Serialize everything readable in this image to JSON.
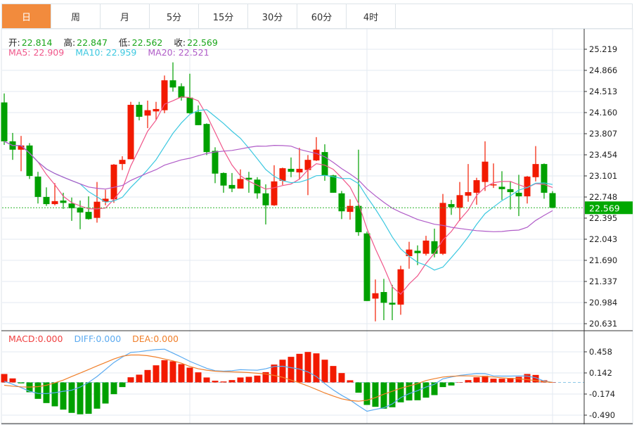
{
  "tabs": [
    {
      "label": "日",
      "active": true
    },
    {
      "label": "周",
      "active": false
    },
    {
      "label": "月",
      "active": false
    },
    {
      "label": "5分",
      "active": false
    },
    {
      "label": "15分",
      "active": false
    },
    {
      "label": "30分",
      "active": false
    },
    {
      "label": "60分",
      "active": false
    },
    {
      "label": "4时",
      "active": false
    }
  ],
  "ohlc_info": {
    "open_label": "开:",
    "open": "22.814",
    "high_label": "高:",
    "high": "22.847",
    "low_label": "低:",
    "low": "22.562",
    "close_label": "收:",
    "close": "22.569"
  },
  "ma_info": {
    "ma5": "MA5: 22.909",
    "ma10": "MA10: 22.959",
    "ma20": "MA20: 22.521"
  },
  "macd_info": {
    "macd": "MACD:0.000",
    "diff": "DIFF:0.000",
    "dea": "DEA:0.000"
  },
  "colors": {
    "up": "#f21a00",
    "down": "#00a000",
    "ma5": "#f0568a",
    "ma10": "#3cc8e0",
    "ma20": "#b05cc8",
    "diff": "#5aaaf0",
    "dea": "#f07f2a",
    "active_tab": "#f28b3d",
    "price_tag": "#00a800"
  },
  "chart_data": [
    {
      "type": "candlestick",
      "current_price": 22.569,
      "current_price_label": "22.569",
      "ylim": [
        20.631,
        25.219
      ],
      "yticks": [
        "25.219",
        "24.866",
        "24.513",
        "24.160",
        "23.807",
        "23.454",
        "23.101",
        "22.748",
        "22.395",
        "22.043",
        "21.690",
        "21.337",
        "20.984",
        "20.631"
      ],
      "ma_periods": [
        5,
        10,
        20
      ],
      "ohlc": [
        [
          24.33,
          24.48,
          23.62,
          23.68
        ],
        [
          23.68,
          23.82,
          23.37,
          23.54
        ],
        [
          23.54,
          23.77,
          23.18,
          23.61
        ],
        [
          23.61,
          23.65,
          23.05,
          23.1
        ],
        [
          23.09,
          23.17,
          22.64,
          22.75
        ],
        [
          22.75,
          22.91,
          22.6,
          22.63
        ],
        [
          22.63,
          22.98,
          22.61,
          22.68
        ],
        [
          22.69,
          22.82,
          22.55,
          22.65
        ],
        [
          22.64,
          22.74,
          22.35,
          22.56
        ],
        [
          22.57,
          22.69,
          22.21,
          22.49
        ],
        [
          22.5,
          22.76,
          22.37,
          22.38
        ],
        [
          22.4,
          23.0,
          22.32,
          22.67
        ],
        [
          22.67,
          22.87,
          22.61,
          22.72
        ],
        [
          22.71,
          23.3,
          22.65,
          23.29
        ],
        [
          23.3,
          23.43,
          23.2,
          23.37
        ],
        [
          23.38,
          24.34,
          23.38,
          24.29
        ],
        [
          24.29,
          24.34,
          24.03,
          24.09
        ],
        [
          24.11,
          24.36,
          23.9,
          24.2
        ],
        [
          24.18,
          24.34,
          24.04,
          24.22
        ],
        [
          24.2,
          24.78,
          24.15,
          24.7
        ],
        [
          24.7,
          25.0,
          24.51,
          24.58
        ],
        [
          24.6,
          24.65,
          24.36,
          24.41
        ],
        [
          24.41,
          24.81,
          24.14,
          24.15
        ],
        [
          24.17,
          24.28,
          23.95,
          23.95
        ],
        [
          23.97,
          23.98,
          23.45,
          23.5
        ],
        [
          23.52,
          23.58,
          22.98,
          23.14
        ],
        [
          23.15,
          23.16,
          22.82,
          22.94
        ],
        [
          22.95,
          23.15,
          22.83,
          22.89
        ],
        [
          22.89,
          23.21,
          22.89,
          23.05
        ],
        [
          23.07,
          23.17,
          22.82,
          23.04
        ],
        [
          23.04,
          23.08,
          22.72,
          22.81
        ],
        [
          22.81,
          22.96,
          22.29,
          22.61
        ],
        [
          22.61,
          23.28,
          22.6,
          23.01
        ],
        [
          23.02,
          23.24,
          22.95,
          23.23
        ],
        [
          23.22,
          23.41,
          23.08,
          23.17
        ],
        [
          23.16,
          23.57,
          23.04,
          23.22
        ],
        [
          23.2,
          23.45,
          22.78,
          23.37
        ],
        [
          23.36,
          23.75,
          23.35,
          23.54
        ],
        [
          23.5,
          23.63,
          23.02,
          23.11
        ],
        [
          23.11,
          23.12,
          22.82,
          22.82
        ],
        [
          22.81,
          22.85,
          22.38,
          22.51
        ],
        [
          22.5,
          22.71,
          22.37,
          22.6
        ],
        [
          22.6,
          23.54,
          22.1,
          22.16
        ],
        [
          22.14,
          22.17,
          21.01,
          21.01
        ],
        [
          21.05,
          21.37,
          20.67,
          21.14
        ],
        [
          21.16,
          21.38,
          20.69,
          20.98
        ],
        [
          20.98,
          21.28,
          20.69,
          20.95
        ],
        [
          20.95,
          21.6,
          20.78,
          21.54
        ],
        [
          21.76,
          22.0,
          21.55,
          21.87
        ],
        [
          21.85,
          21.94,
          21.61,
          21.81
        ],
        [
          21.8,
          22.1,
          21.77,
          22.02
        ],
        [
          22.01,
          22.22,
          21.74,
          21.8
        ],
        [
          21.8,
          22.8,
          21.78,
          22.65
        ],
        [
          22.63,
          22.7,
          22.45,
          22.58
        ],
        [
          22.57,
          23.0,
          22.35,
          22.78
        ],
        [
          22.77,
          23.3,
          22.67,
          22.83
        ],
        [
          22.82,
          23.07,
          22.62,
          23.03
        ],
        [
          23.0,
          23.68,
          22.85,
          23.34
        ],
        [
          22.95,
          23.31,
          22.9,
          22.96
        ],
        [
          22.92,
          23.18,
          22.7,
          22.88
        ],
        [
          22.88,
          23.01,
          22.54,
          22.83
        ],
        [
          22.82,
          23.12,
          22.43,
          22.76
        ],
        [
          22.76,
          23.1,
          22.64,
          23.09
        ],
        [
          23.08,
          23.6,
          23.01,
          23.3
        ],
        [
          23.3,
          23.31,
          22.72,
          22.82
        ],
        [
          22.814,
          22.847,
          22.562,
          22.569
        ]
      ]
    },
    {
      "type": "bar+line",
      "ylim": [
        -0.49,
        0.458
      ],
      "yticks": [
        "0.458",
        "0.142",
        "-0.174",
        "-0.490"
      ],
      "macd": [
        0.126,
        0.06,
        -0.014,
        -0.147,
        -0.246,
        -0.309,
        -0.358,
        -0.407,
        -0.456,
        -0.477,
        -0.47,
        -0.393,
        -0.316,
        -0.176,
        -0.07,
        0.077,
        0.116,
        0.186,
        0.256,
        0.333,
        0.316,
        0.274,
        0.221,
        0.151,
        0.074,
        0.025,
        0.014,
        0.035,
        0.074,
        0.084,
        0.102,
        0.154,
        0.267,
        0.34,
        0.383,
        0.428,
        0.456,
        0.435,
        0.34,
        0.246,
        0.14,
        0.032,
        -0.154,
        -0.337,
        -0.365,
        -0.393,
        -0.372,
        -0.298,
        -0.27,
        -0.267,
        -0.228,
        -0.19,
        -0.07,
        -0.046,
        0.0,
        0.035,
        0.077,
        0.098,
        0.056,
        0.056,
        0.067,
        0.084,
        0.126,
        0.112,
        0.032,
        0.0
      ],
      "diff": [
        0.018,
        -0.028,
        -0.077,
        -0.133,
        -0.165,
        -0.168,
        -0.154,
        -0.133,
        -0.116,
        -0.07,
        0.0,
        0.088,
        0.193,
        0.298,
        0.379,
        0.449,
        0.46,
        0.477,
        0.491,
        0.498,
        0.439,
        0.379,
        0.316,
        0.263,
        0.211,
        0.176,
        0.168,
        0.176,
        0.19,
        0.186,
        0.183,
        0.204,
        0.239,
        0.242,
        0.221,
        0.2,
        0.158,
        0.088,
        -0.018,
        -0.112,
        -0.193,
        -0.263,
        -0.351,
        -0.432,
        -0.404,
        -0.379,
        -0.323,
        -0.228,
        -0.168,
        -0.123,
        -0.07,
        -0.028,
        0.053,
        0.081,
        0.105,
        0.119,
        0.133,
        0.13,
        0.098,
        0.095,
        0.095,
        0.098,
        0.095,
        0.07,
        0.021,
        0.0
      ],
      "dea": [
        -0.042,
        -0.056,
        -0.067,
        -0.07,
        -0.063,
        -0.042,
        -0.007,
        0.035,
        0.088,
        0.14,
        0.193,
        0.246,
        0.298,
        0.351,
        0.393,
        0.411,
        0.411,
        0.4,
        0.379,
        0.351,
        0.323,
        0.288,
        0.239,
        0.204,
        0.183,
        0.168,
        0.161,
        0.158,
        0.154,
        0.147,
        0.137,
        0.126,
        0.105,
        0.077,
        0.035,
        -0.007,
        -0.053,
        -0.105,
        -0.158,
        -0.204,
        -0.246,
        -0.27,
        -0.281,
        -0.267,
        -0.228,
        -0.176,
        -0.133,
        -0.088,
        -0.053,
        -0.018,
        0.028,
        0.056,
        0.081,
        0.091,
        0.098,
        0.098,
        0.095,
        0.088,
        0.081,
        0.07,
        0.06,
        0.053,
        0.042,
        0.028,
        0.011,
        0.0
      ]
    }
  ]
}
